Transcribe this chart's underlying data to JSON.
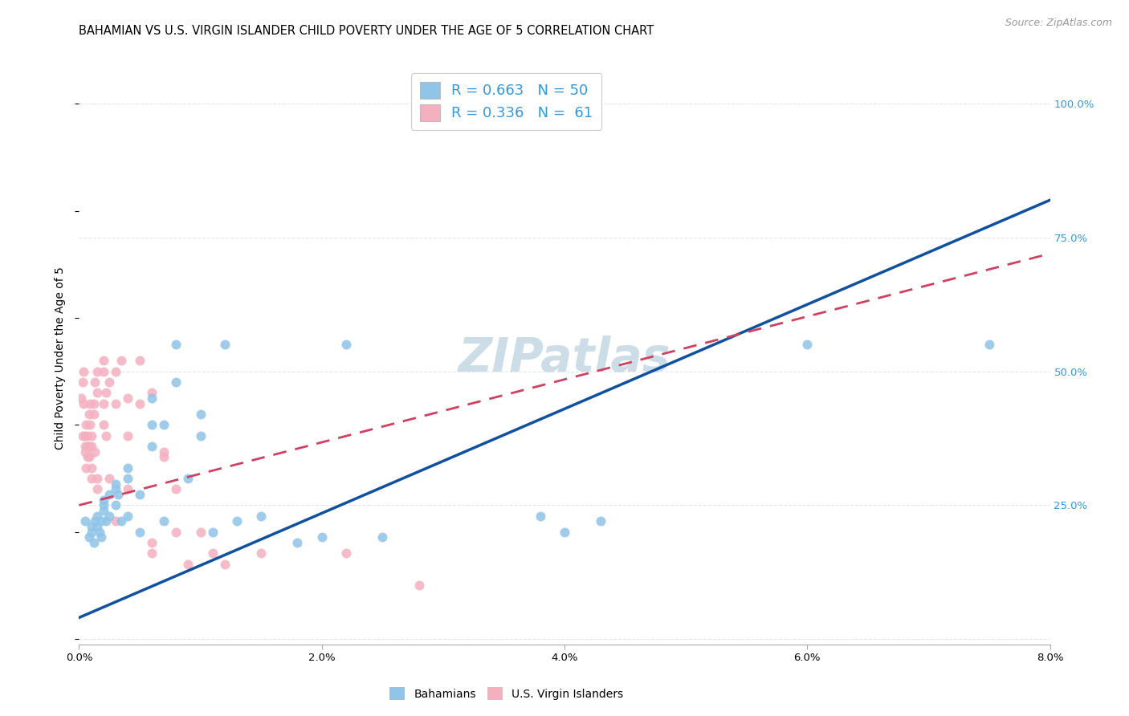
{
  "title": "BAHAMIAN VS U.S. VIRGIN ISLANDER CHILD POVERTY UNDER THE AGE OF 5 CORRELATION CHART",
  "source": "Source: ZipAtlas.com",
  "ylabel": "Child Poverty Under the Age of 5",
  "xlim": [
    0.0,
    0.08
  ],
  "ylim": [
    -0.01,
    1.06
  ],
  "xticks": [
    0.0,
    0.02,
    0.04,
    0.06,
    0.08
  ],
  "xtick_labels": [
    "0.0%",
    "2.0%",
    "4.0%",
    "6.0%",
    "8.0%"
  ],
  "yticks": [
    0.0,
    0.25,
    0.5,
    0.75,
    1.0
  ],
  "ytick_labels": [
    "",
    "25.0%",
    "50.0%",
    "75.0%",
    "100.0%"
  ],
  "legend_R_blue": "R = 0.663",
  "legend_N_blue": "N = 50",
  "legend_R_pink": "R = 0.336",
  "legend_N_pink": "N =  61",
  "watermark": "ZIPatlas",
  "blue_color": "#90c4e8",
  "pink_color": "#f5b0c0",
  "blue_line_color": "#1050a0",
  "pink_line_color": "#d04060",
  "axis_label_color": "#3399dd",
  "blue_scatter": [
    [
      0.0005,
      0.22
    ],
    [
      0.0008,
      0.19
    ],
    [
      0.001,
      0.21
    ],
    [
      0.001,
      0.2
    ],
    [
      0.0012,
      0.18
    ],
    [
      0.0013,
      0.22
    ],
    [
      0.0015,
      0.21
    ],
    [
      0.0015,
      0.23
    ],
    [
      0.0017,
      0.2
    ],
    [
      0.0018,
      0.19
    ],
    [
      0.0018,
      0.22
    ],
    [
      0.002,
      0.24
    ],
    [
      0.002,
      0.26
    ],
    [
      0.002,
      0.25
    ],
    [
      0.0022,
      0.22
    ],
    [
      0.0025,
      0.27
    ],
    [
      0.0025,
      0.23
    ],
    [
      0.003,
      0.29
    ],
    [
      0.003,
      0.28
    ],
    [
      0.003,
      0.25
    ],
    [
      0.0032,
      0.27
    ],
    [
      0.0035,
      0.22
    ],
    [
      0.004,
      0.32
    ],
    [
      0.004,
      0.3
    ],
    [
      0.004,
      0.23
    ],
    [
      0.005,
      0.27
    ],
    [
      0.005,
      0.2
    ],
    [
      0.006,
      0.4
    ],
    [
      0.006,
      0.36
    ],
    [
      0.006,
      0.45
    ],
    [
      0.007,
      0.4
    ],
    [
      0.007,
      0.22
    ],
    [
      0.008,
      0.55
    ],
    [
      0.008,
      0.48
    ],
    [
      0.009,
      0.3
    ],
    [
      0.01,
      0.42
    ],
    [
      0.01,
      0.38
    ],
    [
      0.011,
      0.2
    ],
    [
      0.012,
      0.55
    ],
    [
      0.013,
      0.22
    ],
    [
      0.015,
      0.23
    ],
    [
      0.018,
      0.18
    ],
    [
      0.02,
      0.19
    ],
    [
      0.022,
      0.55
    ],
    [
      0.025,
      0.19
    ],
    [
      0.038,
      0.23
    ],
    [
      0.04,
      0.2
    ],
    [
      0.043,
      0.22
    ],
    [
      0.06,
      0.55
    ],
    [
      0.075,
      0.55
    ]
  ],
  "pink_scatter": [
    [
      0.0002,
      0.45
    ],
    [
      0.0003,
      0.48
    ],
    [
      0.0003,
      0.38
    ],
    [
      0.0004,
      0.5
    ],
    [
      0.0004,
      0.44
    ],
    [
      0.0005,
      0.35
    ],
    [
      0.0005,
      0.38
    ],
    [
      0.0005,
      0.36
    ],
    [
      0.0006,
      0.32
    ],
    [
      0.0006,
      0.4
    ],
    [
      0.0007,
      0.36
    ],
    [
      0.0007,
      0.34
    ],
    [
      0.0007,
      0.38
    ],
    [
      0.0008,
      0.42
    ],
    [
      0.0008,
      0.36
    ],
    [
      0.0008,
      0.34
    ],
    [
      0.0009,
      0.44
    ],
    [
      0.0009,
      0.4
    ],
    [
      0.001,
      0.38
    ],
    [
      0.001,
      0.32
    ],
    [
      0.001,
      0.36
    ],
    [
      0.001,
      0.3
    ],
    [
      0.0012,
      0.44
    ],
    [
      0.0012,
      0.42
    ],
    [
      0.0013,
      0.48
    ],
    [
      0.0013,
      0.35
    ],
    [
      0.0015,
      0.46
    ],
    [
      0.0015,
      0.3
    ],
    [
      0.0015,
      0.5
    ],
    [
      0.0015,
      0.28
    ],
    [
      0.002,
      0.52
    ],
    [
      0.002,
      0.44
    ],
    [
      0.002,
      0.4
    ],
    [
      0.002,
      0.5
    ],
    [
      0.0022,
      0.46
    ],
    [
      0.0022,
      0.38
    ],
    [
      0.0025,
      0.48
    ],
    [
      0.0025,
      0.3
    ],
    [
      0.003,
      0.5
    ],
    [
      0.003,
      0.44
    ],
    [
      0.003,
      0.22
    ],
    [
      0.0035,
      0.52
    ],
    [
      0.004,
      0.45
    ],
    [
      0.004,
      0.38
    ],
    [
      0.004,
      0.28
    ],
    [
      0.005,
      0.44
    ],
    [
      0.005,
      0.52
    ],
    [
      0.006,
      0.46
    ],
    [
      0.006,
      0.18
    ],
    [
      0.006,
      0.16
    ],
    [
      0.007,
      0.35
    ],
    [
      0.007,
      0.34
    ],
    [
      0.008,
      0.28
    ],
    [
      0.008,
      0.2
    ],
    [
      0.009,
      0.14
    ],
    [
      0.01,
      0.2
    ],
    [
      0.011,
      0.16
    ],
    [
      0.012,
      0.14
    ],
    [
      0.015,
      0.16
    ],
    [
      0.022,
      0.16
    ],
    [
      0.028,
      0.1
    ]
  ],
  "blue_line_x": [
    0.0,
    0.08
  ],
  "blue_line_y": [
    0.04,
    0.82
  ],
  "pink_line_x": [
    0.0,
    0.08
  ],
  "pink_line_y": [
    0.25,
    0.72
  ],
  "title_fontsize": 10.5,
  "source_fontsize": 9,
  "ylabel_fontsize": 10,
  "tick_fontsize": 9.5,
  "legend_fontsize": 13,
  "watermark_fontsize": 42,
  "watermark_color": "#ccdde8",
  "background_color": "#ffffff",
  "grid_color": "#e5e5e5"
}
